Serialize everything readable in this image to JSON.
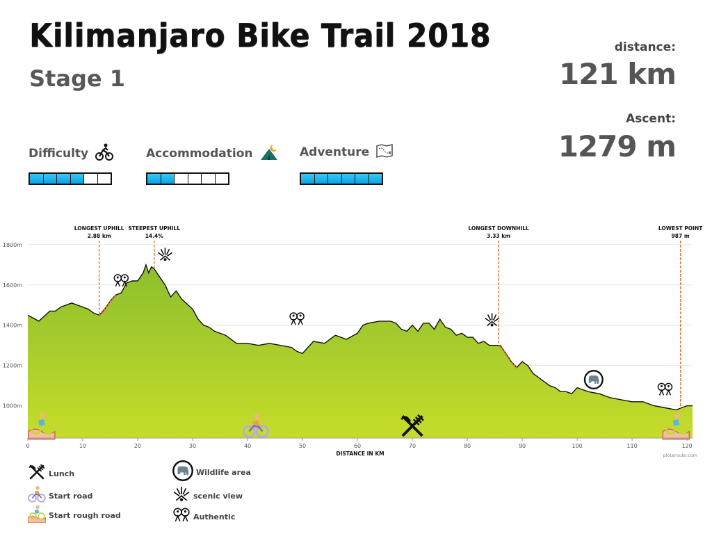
{
  "header": {
    "title": "Kilimanjaro Bike Trail 2018",
    "subtitle": "Stage 1"
  },
  "stats": {
    "distance_label": "distance:",
    "distance_value": "121 km",
    "ascent_label": "Ascent:",
    "ascent_value": "1279 m"
  },
  "ratings": [
    {
      "label": "Difficulty",
      "icon": "cyclist-icon",
      "filled": 4,
      "total": 6
    },
    {
      "label": "Accommodation",
      "icon": "tent-moon-icon",
      "filled": 2,
      "total": 6
    },
    {
      "label": "Adventure",
      "icon": "treasure-map-icon",
      "filled": 6,
      "total": 6
    }
  ],
  "chart_data": {
    "type": "area",
    "xlabel": "DISTANCE IN KM",
    "ylabel": "",
    "xlim": [
      0,
      121
    ],
    "ylim": [
      840,
      1820
    ],
    "x_ticks": [
      0,
      10,
      20,
      30,
      40,
      50,
      60,
      70,
      80,
      90,
      100,
      110,
      120
    ],
    "y_ticks": [
      1000,
      1200,
      1400,
      1600,
      1800
    ],
    "y_tick_labels": [
      "1000m",
      "1200m",
      "1400m",
      "1600m",
      "1800m"
    ],
    "grid": true,
    "fill_colors": [
      "#8cbf2d",
      "#c6dc2a"
    ],
    "highlight_color": "#e8692a",
    "credit": "plotaroute.com",
    "profile": {
      "x": [
        0,
        2,
        4,
        5,
        6,
        8,
        10,
        11,
        12,
        13,
        14,
        15,
        16,
        17,
        18,
        19,
        20,
        21,
        21.5,
        22,
        22.5,
        23,
        24,
        25,
        26,
        27,
        28,
        30,
        31,
        32,
        33,
        34,
        36,
        38,
        40,
        42,
        44,
        46,
        48,
        49,
        50,
        51,
        52,
        54,
        56,
        58,
        60,
        61,
        62,
        64,
        66,
        67,
        68,
        69,
        70,
        71,
        72,
        73,
        74,
        75,
        76,
        77,
        78,
        79,
        80,
        81,
        82,
        83,
        84,
        85,
        86,
        87,
        88,
        89,
        90,
        91,
        92,
        93,
        94,
        95,
        96,
        97,
        98,
        99,
        100,
        101,
        102,
        104,
        106,
        108,
        110,
        112,
        114,
        116,
        118,
        119,
        120,
        121
      ],
      "y": [
        1450,
        1420,
        1470,
        1470,
        1490,
        1510,
        1490,
        1480,
        1460,
        1450,
        1480,
        1520,
        1550,
        1560,
        1610,
        1620,
        1620,
        1660,
        1700,
        1660,
        1690,
        1680,
        1640,
        1600,
        1540,
        1570,
        1530,
        1480,
        1430,
        1400,
        1390,
        1370,
        1350,
        1310,
        1310,
        1300,
        1310,
        1300,
        1290,
        1270,
        1260,
        1290,
        1320,
        1310,
        1350,
        1330,
        1360,
        1400,
        1410,
        1420,
        1420,
        1410,
        1380,
        1370,
        1400,
        1370,
        1410,
        1410,
        1380,
        1430,
        1390,
        1380,
        1350,
        1360,
        1340,
        1340,
        1310,
        1320,
        1300,
        1300,
        1300,
        1260,
        1220,
        1190,
        1220,
        1200,
        1160,
        1140,
        1120,
        1100,
        1090,
        1070,
        1070,
        1060,
        1090,
        1080,
        1070,
        1060,
        1040,
        1030,
        1020,
        1020,
        1000,
        990,
        980,
        990,
        1000,
        1000
      ]
    },
    "highlights": [
      {
        "x_start": 13,
        "x_end": 16
      },
      {
        "x_start": 85.7,
        "x_end": 89
      }
    ],
    "annotations": [
      {
        "x": 13,
        "label": "LONGEST UPHILL",
        "value": "2.88 km"
      },
      {
        "x": 23,
        "label": "STEEPEST UPHILL",
        "value": "14.4%"
      },
      {
        "x": 85.7,
        "label": "LONGEST DOWNHILL",
        "value": "3.33 km"
      },
      {
        "x": 118.8,
        "label": "LOWEST POINT",
        "value": "987 m"
      }
    ],
    "markers": [
      {
        "x": 17,
        "y": 1620,
        "icon": "authentic-people-icon"
      },
      {
        "x": 25,
        "y": 1750,
        "icon": "scenic-view-icon"
      },
      {
        "x": 49,
        "y": 1430,
        "icon": "authentic-people-icon"
      },
      {
        "x": 84.5,
        "y": 1425,
        "icon": "scenic-view-icon"
      },
      {
        "x": 103,
        "y": 1130,
        "icon": "wildlife-elephant-icon"
      },
      {
        "x": 116,
        "y": 1080,
        "icon": "authentic-people-icon"
      },
      {
        "x": 2.5,
        "y": 900,
        "icon": "start-rough-road-icon"
      },
      {
        "x": 41.5,
        "y": 900,
        "icon": "start-road-icon"
      },
      {
        "x": 70,
        "y": 900,
        "icon": "lunch-icon"
      },
      {
        "x": 118,
        "y": 900,
        "icon": "start-rough-road-icon"
      }
    ]
  },
  "legend": [
    {
      "label": "Lunch",
      "icon": "lunch-icon"
    },
    {
      "label": "Start road",
      "icon": "start-road-icon"
    },
    {
      "label": "Start rough road",
      "icon": "start-rough-road-icon"
    },
    {
      "label": "Wildlife area",
      "icon": "wildlife-elephant-icon"
    },
    {
      "label": "scenic view",
      "icon": "scenic-view-icon"
    },
    {
      "label": "Authentic",
      "icon": "authentic-people-icon"
    }
  ]
}
